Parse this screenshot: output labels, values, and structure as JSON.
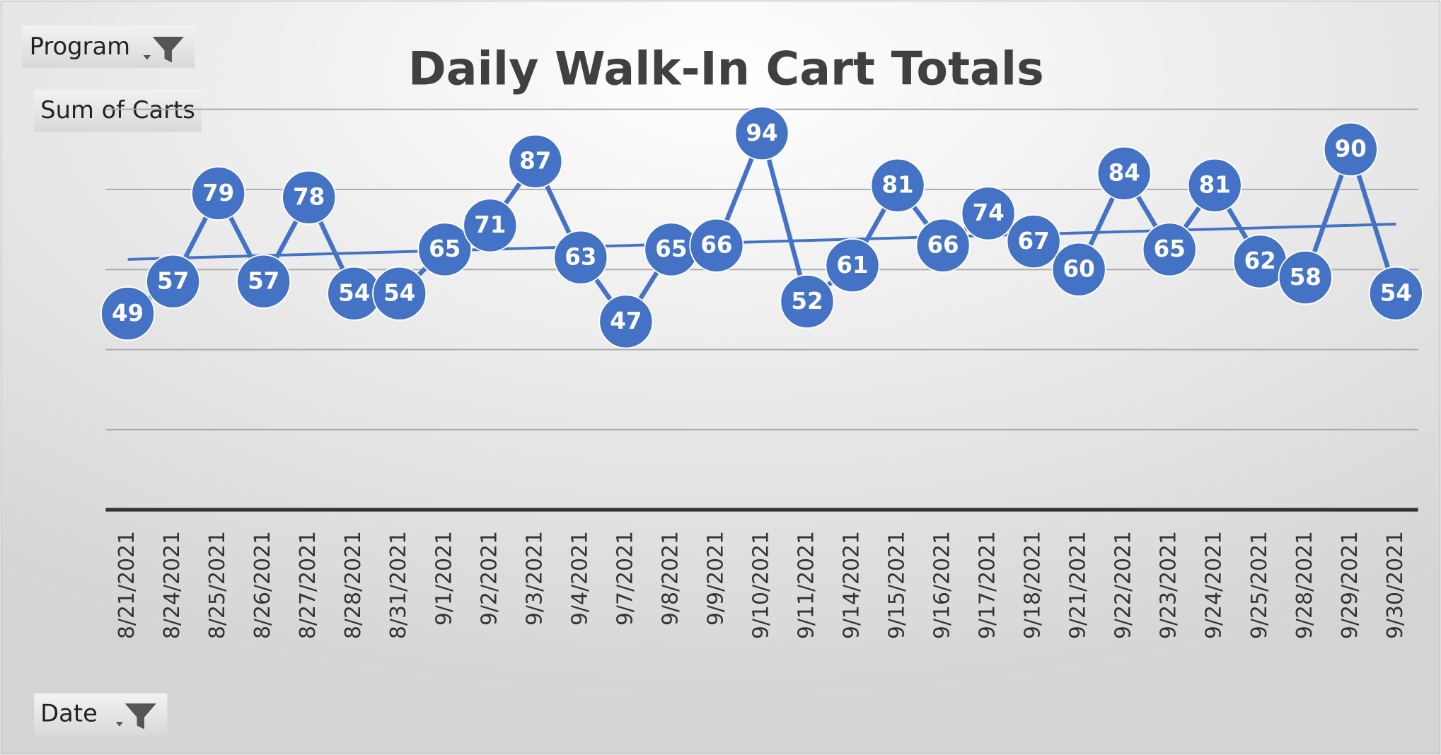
{
  "chart_data": {
    "type": "line",
    "title": "Daily Walk-In Cart Totals",
    "filters": [
      "Program",
      "Date"
    ],
    "value_field": "Sum of Carts",
    "categories": [
      "8/21/2021",
      "8/24/2021",
      "8/25/2021",
      "8/26/2021",
      "8/27/2021",
      "8/28/2021",
      "8/31/2021",
      "9/1/2021",
      "9/2/2021",
      "9/3/2021",
      "9/4/2021",
      "9/7/2021",
      "9/8/2021",
      "9/9/2021",
      "9/10/2021",
      "9/11/2021",
      "9/14/2021",
      "9/15/2021",
      "9/16/2021",
      "9/17/2021",
      "9/18/2021",
      "9/21/2021",
      "9/22/2021",
      "9/23/2021",
      "9/24/2021",
      "9/25/2021",
      "9/28/2021",
      "9/29/2021",
      "9/30/2021"
    ],
    "values": [
      49,
      57,
      79,
      57,
      78,
      54,
      54,
      65,
      71,
      87,
      63,
      47,
      65,
      66,
      94,
      52,
      61,
      81,
      66,
      74,
      67,
      60,
      84,
      65,
      81,
      62,
      58,
      90,
      54
    ],
    "color": "#4472c4",
    "trendline": "linear",
    "ylim": [
      0,
      100
    ],
    "yticks": [
      0,
      20,
      40,
      60,
      80,
      100
    ],
    "grid": true
  }
}
